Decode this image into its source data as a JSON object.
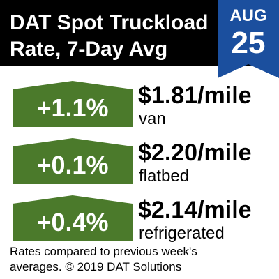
{
  "header": {
    "title_lines": [
      "DAT Spot Truckload",
      "Rate, 7-Day Avg"
    ]
  },
  "date": {
    "month": "AUG",
    "day": "25"
  },
  "rows": [
    {
      "change": "+1.1%",
      "rate": "$1.81/mile",
      "equipment": "van"
    },
    {
      "change": "+0.1%",
      "rate": "$2.20/mile",
      "equipment": "flatbed"
    },
    {
      "change": "+0.4%",
      "rate": "$2.14/mile",
      "equipment": "refrigerated"
    }
  ],
  "footer": {
    "lines": [
      "Rates compared to previous week's",
      "averages. © 2019 DAT Solutions"
    ]
  }
}
